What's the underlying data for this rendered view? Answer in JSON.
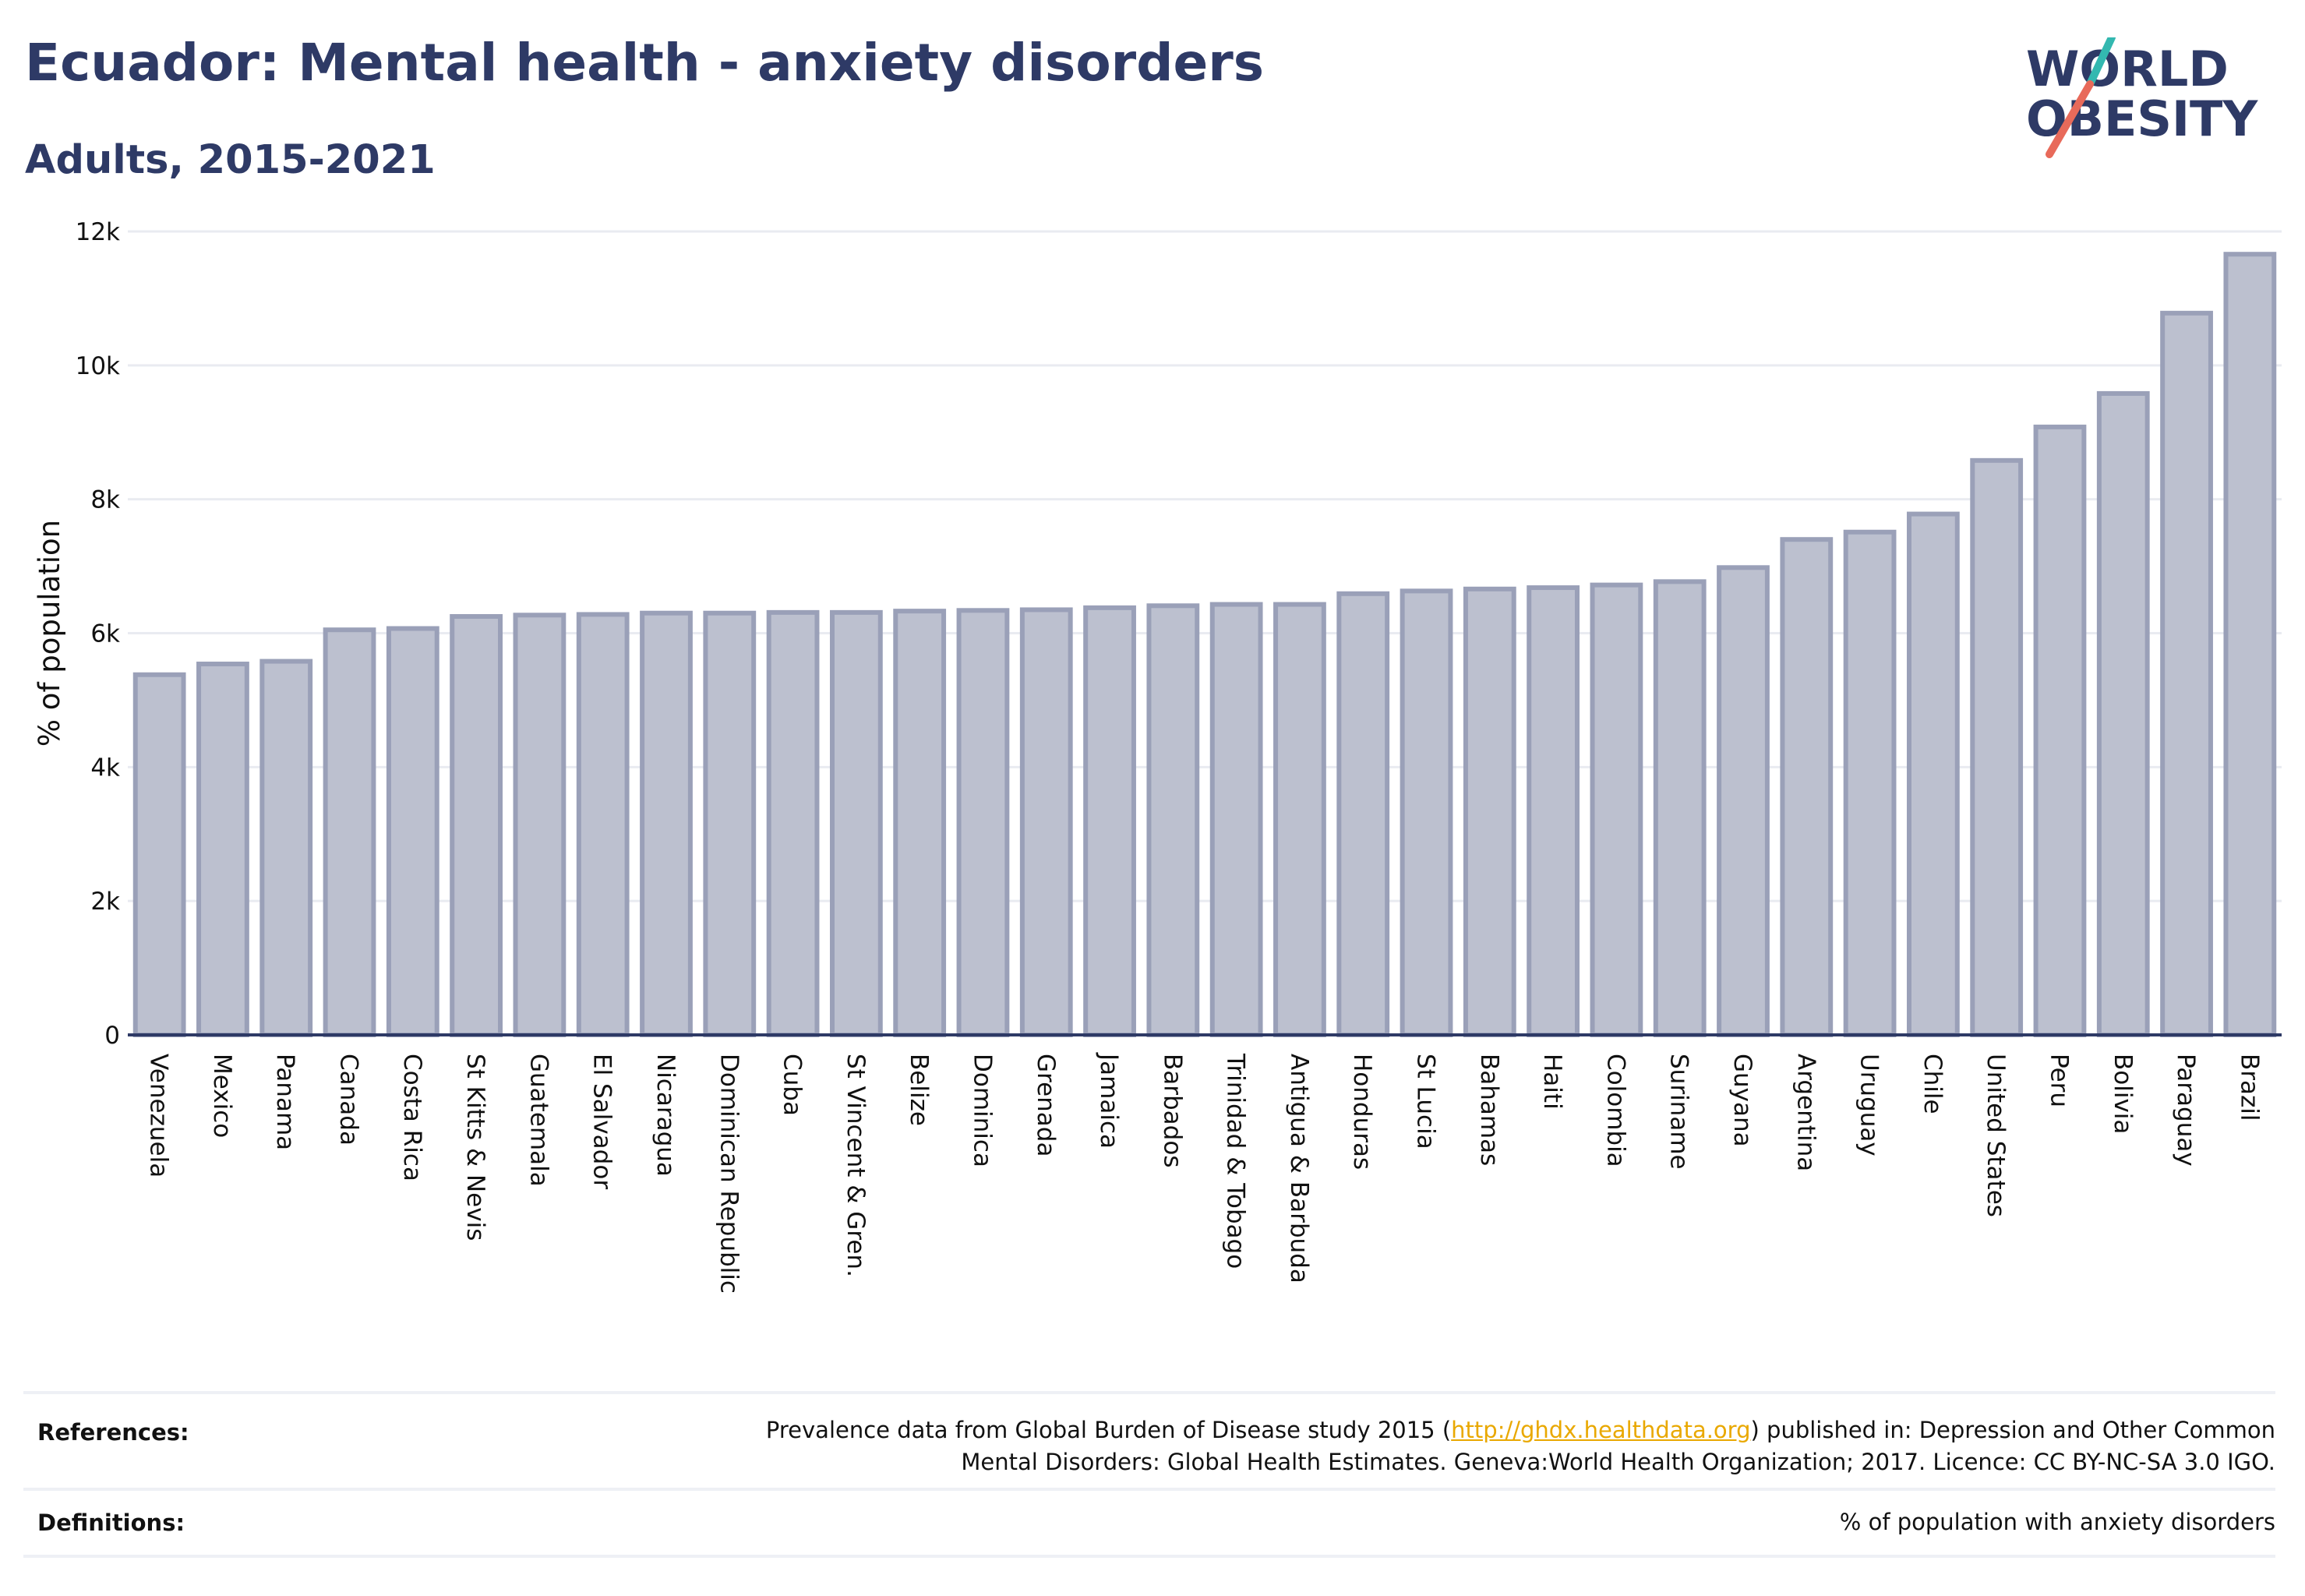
{
  "header": {
    "title": "Ecuador: Mental health - anxiety disorders",
    "subtitle": "Adults, 2015-2021"
  },
  "logo": {
    "line1": "WORLD",
    "line2": "OBESITY"
  },
  "colors": {
    "bar_fill": "#bcc0cf",
    "bar_stroke": "#9aa0b8",
    "title": "#2e3a66",
    "grid": "#e9ebf1",
    "link": "#e9a800",
    "logo_teal": "#33b8b0",
    "logo_coral": "#e86a5a"
  },
  "chart_data": {
    "type": "bar",
    "ylabel": "% of population",
    "xlabel": "",
    "ylim": [
      0,
      12000
    ],
    "yticks": [
      0,
      2000,
      4000,
      6000,
      8000,
      10000,
      12000
    ],
    "ytick_labels": [
      "0",
      "2k",
      "4k",
      "6k",
      "8k",
      "10k",
      "12k"
    ],
    "grid": true,
    "categories": [
      "Venezuela",
      "Mexico",
      "Panama",
      "Canada",
      "Costa Rica",
      "St Kitts & Nevis",
      "Guatemala",
      "El Salvador",
      "Nicaragua",
      "Dominican Republic",
      "Cuba",
      "St Vincent & Gren.",
      "Belize",
      "Dominica",
      "Grenada",
      "Jamaica",
      "Barbados",
      "Trinidad & Tobago",
      "Antigua & Barbuda",
      "Honduras",
      "St Lucia",
      "Bahamas",
      "Haiti",
      "Colombia",
      "Suriname",
      "Guyana",
      "Argentina",
      "Uruguay",
      "Chile",
      "United States",
      "Peru",
      "Bolivia",
      "Paraguay",
      "Brazil"
    ],
    "values": [
      5380,
      5540,
      5580,
      6050,
      6070,
      6250,
      6270,
      6280,
      6300,
      6300,
      6310,
      6310,
      6330,
      6340,
      6350,
      6380,
      6410,
      6430,
      6430,
      6590,
      6630,
      6660,
      6680,
      6720,
      6770,
      6980,
      7400,
      7510,
      7780,
      8580,
      9080,
      9580,
      10780,
      11660
    ]
  },
  "footer": {
    "references_label": "References:",
    "references_text_before": "Prevalence data from Global Burden of Disease study 2015 (",
    "references_link": "http://ghdx.healthdata.org",
    "references_text_after": ") published in: Depression and Other Common",
    "references_line2": "Mental Disorders: Global Health Estimates. Geneva:World Health Organization; 2017. Licence: CC BY-NC-SA 3.0 IGO.",
    "definitions_label": "Definitions:",
    "definitions_text": "% of population with anxiety disorders"
  }
}
